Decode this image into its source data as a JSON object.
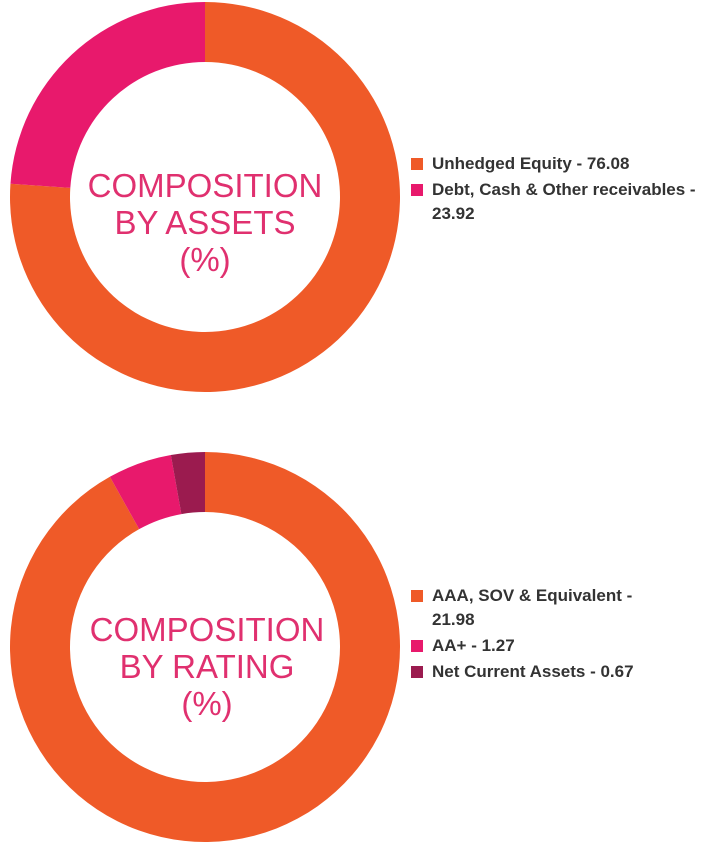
{
  "colors": {
    "orange": "#ef5a28",
    "pink": "#e8196c",
    "maroon": "#9b1b4f",
    "title": "#e0306f",
    "legend_text": "#333333"
  },
  "chart_data": [
    {
      "type": "pie",
      "donut": true,
      "title_lines": [
        "COMPOSITION",
        "BY ASSETS",
        "(%)"
      ],
      "series": [
        {
          "name": "Unhedged Equity",
          "value": 76.08,
          "color": "#ef5a28",
          "legend": "Unhedged Equity - 76.08"
        },
        {
          "name": "Debt, Cash & Other receivables",
          "value": 23.92,
          "color": "#e8196c",
          "legend": "Debt, Cash & Other receivables - 23.92"
        }
      ],
      "legend_position": "right"
    },
    {
      "type": "pie",
      "donut": true,
      "title_lines": [
        "COMPOSITION",
        "BY RATING",
        "(%)"
      ],
      "series": [
        {
          "name": "AAA, SOV & Equivalent",
          "value": 21.98,
          "color": "#ef5a28",
          "legend": "AAA, SOV & Equivalent - 21.98"
        },
        {
          "name": "AA+",
          "value": 1.27,
          "color": "#e8196c",
          "legend": "AA+ - 1.27"
        },
        {
          "name": "Net Current Assets",
          "value": 0.67,
          "color": "#9b1b4f",
          "legend": "Net Current Assets - 0.67"
        }
      ],
      "legend_position": "right"
    }
  ]
}
